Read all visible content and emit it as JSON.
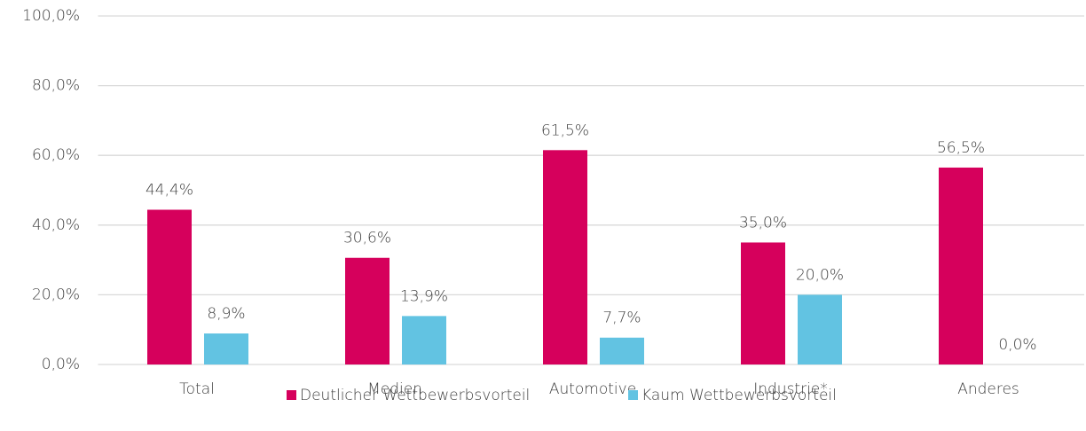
{
  "chart_data": {
    "type": "bar",
    "categories": [
      "Total",
      "Medien",
      "Automotive",
      "Industrie*",
      "Anderes"
    ],
    "series": [
      {
        "name": "Deutlicher Wettbewerbsvorteil",
        "color": "#d6005c",
        "values": [
          44.4,
          30.6,
          61.5,
          35.0,
          56.5
        ],
        "value_labels": [
          "44,4%",
          "30,6%",
          "61,5%",
          "35,0%",
          "56,5%"
        ]
      },
      {
        "name": "Kaum Wettbewerbsvorteil",
        "color": "#62c3e2",
        "values": [
          8.9,
          13.9,
          7.7,
          20.0,
          0.0
        ],
        "value_labels": [
          "8,9%",
          "13,9%",
          "7,7%",
          "20,0%",
          "0,0%"
        ]
      }
    ],
    "ylim": [
      0,
      100
    ],
    "yticks": [
      {
        "value": 0,
        "label": "0,0%"
      },
      {
        "value": 20,
        "label": "20,0%"
      },
      {
        "value": 40,
        "label": "40,0%"
      },
      {
        "value": 60,
        "label": "60,0%"
      },
      {
        "value": 80,
        "label": "80,0%"
      },
      {
        "value": 100,
        "label": "100,0%"
      }
    ],
    "grid": true,
    "legend": "bottom"
  }
}
